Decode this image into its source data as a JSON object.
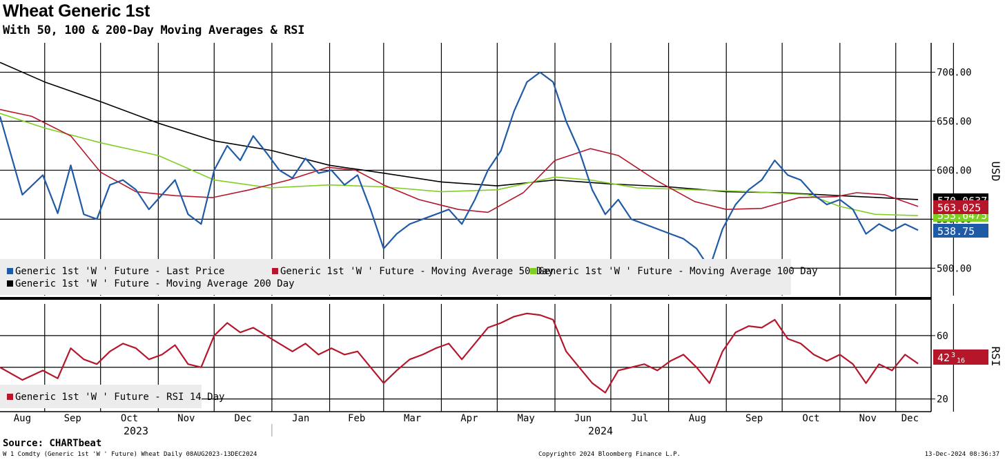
{
  "header": {
    "title": "Wheat Generic 1st",
    "subtitle": "With 50, 100 & 200-Day Moving Averages & RSI"
  },
  "footer": {
    "source": "Source: CHARTbeat",
    "ticker": "W 1 Comdty (Generic 1st 'W ' Future) Wheat  Daily 08AUG2023-13DEC2024",
    "copyright": "Copyright© 2024 Bloomberg Finance L.P.",
    "timestamp": "13-Dec-2024 08:36:37"
  },
  "colors": {
    "price": "#1f5aa6",
    "ma50": "#b5162a",
    "ma100": "#7fcf22",
    "ma200": "#000000",
    "rsi": "#b5162a",
    "grid": "#000000"
  },
  "legend": {
    "price": "Generic 1st 'W ' Future - Last Price",
    "ma50": "Generic 1st 'W ' Future - Moving Average 50 Day",
    "ma100": "Generic 1st 'W ' Future - Moving Average 100 Day",
    "ma200": "Generic 1st 'W ' Future - Moving Average 200 Day",
    "rsi": "Generic 1st 'W ' Future - RSI 14 Day"
  },
  "chart_data": [
    {
      "type": "line",
      "panel": "price",
      "ylabel": "USD",
      "ylim": [
        472,
        730
      ],
      "yticks": [
        "500.00",
        "550.00",
        "600.00",
        "650.00",
        "700.00"
      ],
      "x_months": [
        "Aug",
        "Sep",
        "Oct",
        "Nov",
        "Dec",
        "Jan",
        "Feb",
        "Mar",
        "Apr",
        "May",
        "Jun",
        "Jul",
        "Aug",
        "Sep",
        "Oct",
        "Nov",
        "Dec"
      ],
      "x_years": [
        "2023",
        "2024"
      ],
      "last_values": {
        "ma200": "570.0637",
        "ma50": "563.025",
        "ma100": "553.6475",
        "price": "538.75"
      },
      "series": [
        {
          "name": "Generic 1st 'W ' Future - Last Price",
          "key": "price",
          "points": [
            [
              "2023-08-08",
              655
            ],
            [
              "2023-08-20",
              575
            ],
            [
              "2023-08-31",
              595
            ],
            [
              "2023-09-08",
              556
            ],
            [
              "2023-09-15",
              605
            ],
            [
              "2023-09-22",
              555
            ],
            [
              "2023-09-29",
              550
            ],
            [
              "2023-10-06",
              585
            ],
            [
              "2023-10-13",
              590
            ],
            [
              "2023-10-20",
              580
            ],
            [
              "2023-10-27",
              560
            ],
            [
              "2023-11-03",
              575
            ],
            [
              "2023-11-10",
              590
            ],
            [
              "2023-11-17",
              555
            ],
            [
              "2023-11-24",
              545
            ],
            [
              "2023-12-01",
              600
            ],
            [
              "2023-12-08",
              625
            ],
            [
              "2023-12-15",
              610
            ],
            [
              "2023-12-22",
              635
            ],
            [
              "2023-12-29",
              618
            ],
            [
              "2024-01-05",
              600
            ],
            [
              "2024-01-12",
              592
            ],
            [
              "2024-01-19",
              612
            ],
            [
              "2024-01-26",
              597
            ],
            [
              "2024-02-02",
              600
            ],
            [
              "2024-02-09",
              585
            ],
            [
              "2024-02-16",
              595
            ],
            [
              "2024-02-23",
              560
            ],
            [
              "2024-03-01",
              520
            ],
            [
              "2024-03-08",
              535
            ],
            [
              "2024-03-15",
              545
            ],
            [
              "2024-03-22",
              550
            ],
            [
              "2024-03-29",
              555
            ],
            [
              "2024-04-05",
              560
            ],
            [
              "2024-04-12",
              545
            ],
            [
              "2024-04-19",
              570
            ],
            [
              "2024-04-26",
              600
            ],
            [
              "2024-05-03",
              620
            ],
            [
              "2024-05-10",
              660
            ],
            [
              "2024-05-17",
              690
            ],
            [
              "2024-05-24",
              700
            ],
            [
              "2024-05-31",
              690
            ],
            [
              "2024-06-07",
              650
            ],
            [
              "2024-06-14",
              620
            ],
            [
              "2024-06-21",
              580
            ],
            [
              "2024-06-28",
              555
            ],
            [
              "2024-07-05",
              570
            ],
            [
              "2024-07-12",
              550
            ],
            [
              "2024-07-19",
              545
            ],
            [
              "2024-07-26",
              540
            ],
            [
              "2024-08-02",
              535
            ],
            [
              "2024-08-09",
              530
            ],
            [
              "2024-08-16",
              520
            ],
            [
              "2024-08-23",
              500
            ],
            [
              "2024-08-30",
              540
            ],
            [
              "2024-09-06",
              565
            ],
            [
              "2024-09-13",
              580
            ],
            [
              "2024-09-20",
              590
            ],
            [
              "2024-09-27",
              610
            ],
            [
              "2024-10-04",
              595
            ],
            [
              "2024-10-11",
              590
            ],
            [
              "2024-10-18",
              575
            ],
            [
              "2024-10-25",
              565
            ],
            [
              "2024-11-01",
              570
            ],
            [
              "2024-11-08",
              560
            ],
            [
              "2024-11-15",
              535
            ],
            [
              "2024-11-22",
              545
            ],
            [
              "2024-11-29",
              538
            ],
            [
              "2024-12-06",
              545
            ],
            [
              "2024-12-13",
              538.75
            ]
          ]
        },
        {
          "name": "Generic 1st 'W ' Future - Moving Average 50 Day",
          "key": "ma50",
          "points": [
            [
              "2023-08-08",
              662
            ],
            [
              "2023-08-25",
              655
            ],
            [
              "2023-09-15",
              635
            ],
            [
              "2023-10-01",
              598
            ],
            [
              "2023-10-20",
              578
            ],
            [
              "2023-11-10",
              574
            ],
            [
              "2023-11-30",
              572
            ],
            [
              "2023-12-20",
              580
            ],
            [
              "2024-01-10",
              590
            ],
            [
              "2024-01-31",
              603
            ],
            [
              "2024-02-15",
              600
            ],
            [
              "2024-03-01",
              585
            ],
            [
              "2024-03-20",
              570
            ],
            [
              "2024-04-10",
              560
            ],
            [
              "2024-04-26",
              557
            ],
            [
              "2024-05-15",
              577
            ],
            [
              "2024-06-01",
              610
            ],
            [
              "2024-06-20",
              622
            ],
            [
              "2024-07-05",
              615
            ],
            [
              "2024-07-25",
              590
            ],
            [
              "2024-08-15",
              568
            ],
            [
              "2024-09-01",
              560
            ],
            [
              "2024-09-20",
              561
            ],
            [
              "2024-10-10",
              572
            ],
            [
              "2024-10-30",
              573
            ],
            [
              "2024-11-10",
              577
            ],
            [
              "2024-11-25",
              575
            ],
            [
              "2024-12-13",
              563.025
            ]
          ]
        },
        {
          "name": "Generic 1st 'W ' Future - Moving Average 100 Day",
          "key": "ma100",
          "points": [
            [
              "2023-08-08",
              658
            ],
            [
              "2023-09-01",
              643
            ],
            [
              "2023-10-01",
              628
            ],
            [
              "2023-11-01",
              615
            ],
            [
              "2023-12-01",
              590
            ],
            [
              "2023-12-31",
              582
            ],
            [
              "2024-02-01",
              585
            ],
            [
              "2024-03-01",
              583
            ],
            [
              "2024-04-01",
              578
            ],
            [
              "2024-05-01",
              580
            ],
            [
              "2024-06-01",
              593
            ],
            [
              "2024-06-20",
              590
            ],
            [
              "2024-07-15",
              582
            ],
            [
              "2024-08-15",
              580
            ],
            [
              "2024-09-15",
              578
            ],
            [
              "2024-10-15",
              575
            ],
            [
              "2024-11-01",
              563
            ],
            [
              "2024-11-20",
              555
            ],
            [
              "2024-12-13",
              553.6475
            ]
          ]
        },
        {
          "name": "Generic 1st 'W ' Future - Moving Average 200 Day",
          "key": "ma200",
          "points": [
            [
              "2023-08-08",
              710
            ],
            [
              "2023-09-01",
              690
            ],
            [
              "2023-10-01",
              670
            ],
            [
              "2023-11-01",
              648
            ],
            [
              "2023-12-01",
              630
            ],
            [
              "2024-01-01",
              620
            ],
            [
              "2024-02-01",
              605
            ],
            [
              "2024-03-01",
              597
            ],
            [
              "2024-04-01",
              588
            ],
            [
              "2024-05-01",
              584
            ],
            [
              "2024-06-01",
              590
            ],
            [
              "2024-07-01",
              586
            ],
            [
              "2024-08-01",
              583
            ],
            [
              "2024-09-01",
              578
            ],
            [
              "2024-10-01",
              577
            ],
            [
              "2024-11-01",
              574
            ],
            [
              "2024-12-13",
              570.0637
            ]
          ]
        }
      ]
    },
    {
      "type": "line",
      "panel": "rsi",
      "ylabel": "RSI",
      "ylim": [
        12,
        80
      ],
      "yticks": [
        "20",
        "60"
      ],
      "last_values": {
        "rsi_main": "42",
        "rsi_sup": "3",
        "rsi_sub": "16"
      },
      "series": [
        {
          "name": "Generic 1st 'W ' Future - RSI 14 Day",
          "key": "rsi",
          "points": [
            [
              "2023-08-08",
              40
            ],
            [
              "2023-08-20",
              32
            ],
            [
              "2023-08-31",
              38
            ],
            [
              "2023-09-08",
              33
            ],
            [
              "2023-09-15",
              52
            ],
            [
              "2023-09-22",
              45
            ],
            [
              "2023-09-29",
              42
            ],
            [
              "2023-10-06",
              50
            ],
            [
              "2023-10-13",
              55
            ],
            [
              "2023-10-20",
              52
            ],
            [
              "2023-10-27",
              45
            ],
            [
              "2023-11-03",
              48
            ],
            [
              "2023-11-10",
              54
            ],
            [
              "2023-11-17",
              42
            ],
            [
              "2023-11-24",
              40
            ],
            [
              "2023-12-01",
              60
            ],
            [
              "2023-12-08",
              68
            ],
            [
              "2023-12-15",
              62
            ],
            [
              "2023-12-22",
              65
            ],
            [
              "2023-12-29",
              60
            ],
            [
              "2024-01-05",
              55
            ],
            [
              "2024-01-12",
              50
            ],
            [
              "2024-01-19",
              55
            ],
            [
              "2024-01-26",
              48
            ],
            [
              "2024-02-02",
              52
            ],
            [
              "2024-02-09",
              48
            ],
            [
              "2024-02-16",
              50
            ],
            [
              "2024-02-23",
              40
            ],
            [
              "2024-03-01",
              30
            ],
            [
              "2024-03-08",
              38
            ],
            [
              "2024-03-15",
              45
            ],
            [
              "2024-03-22",
              48
            ],
            [
              "2024-03-29",
              52
            ],
            [
              "2024-04-05",
              55
            ],
            [
              "2024-04-12",
              45
            ],
            [
              "2024-04-19",
              55
            ],
            [
              "2024-04-26",
              65
            ],
            [
              "2024-05-03",
              68
            ],
            [
              "2024-05-10",
              72
            ],
            [
              "2024-05-17",
              74
            ],
            [
              "2024-05-24",
              73
            ],
            [
              "2024-05-31",
              70
            ],
            [
              "2024-06-07",
              50
            ],
            [
              "2024-06-14",
              40
            ],
            [
              "2024-06-21",
              30
            ],
            [
              "2024-06-28",
              24
            ],
            [
              "2024-07-05",
              38
            ],
            [
              "2024-07-12",
              40
            ],
            [
              "2024-07-19",
              42
            ],
            [
              "2024-07-26",
              38
            ],
            [
              "2024-08-02",
              44
            ],
            [
              "2024-08-09",
              48
            ],
            [
              "2024-08-16",
              40
            ],
            [
              "2024-08-23",
              30
            ],
            [
              "2024-08-30",
              50
            ],
            [
              "2024-09-06",
              62
            ],
            [
              "2024-09-13",
              66
            ],
            [
              "2024-09-20",
              65
            ],
            [
              "2024-09-27",
              70
            ],
            [
              "2024-10-04",
              58
            ],
            [
              "2024-10-11",
              55
            ],
            [
              "2024-10-18",
              48
            ],
            [
              "2024-10-25",
              44
            ],
            [
              "2024-11-01",
              48
            ],
            [
              "2024-11-08",
              42
            ],
            [
              "2024-11-15",
              30
            ],
            [
              "2024-11-22",
              42
            ],
            [
              "2024-11-29",
              38
            ],
            [
              "2024-12-06",
              48
            ],
            [
              "2024-12-13",
              42.3
            ]
          ]
        }
      ]
    }
  ]
}
